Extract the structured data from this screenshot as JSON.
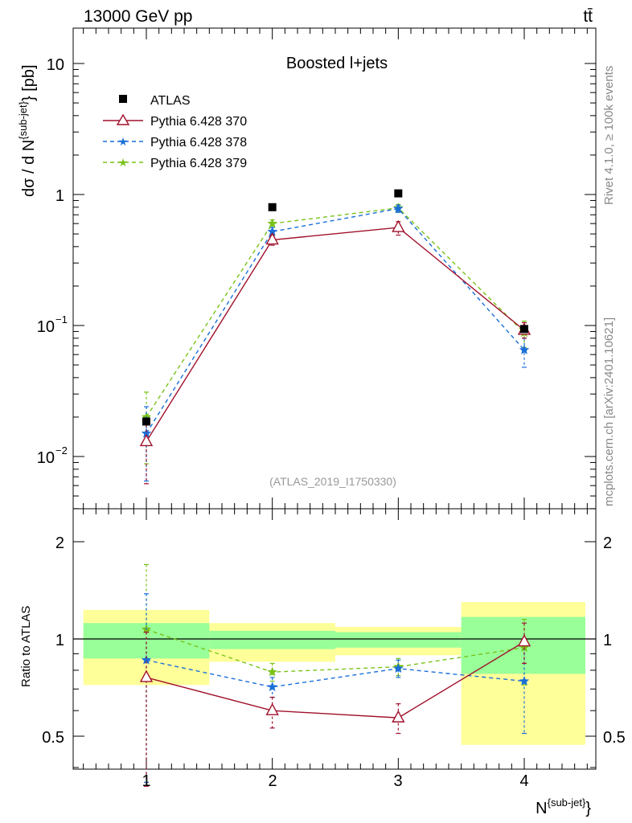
{
  "header": {
    "energy": "13000 GeV pp",
    "process": "tt̄"
  },
  "side": {
    "rivet": "Rivet 4.1.0, ≥ 100k events",
    "mcplots": "mcplots.cern.ch [arXiv:2401.10621]"
  },
  "chart_data": {
    "type": "scatter",
    "title": "Boosted l+jets",
    "analysis": "(ATLAS_2019_I1750330)",
    "xlabel": "N",
    "xlabel_sup": "{sub-jet}",
    "xlabel_end": "}",
    "ylabel": "dσ / d N",
    "ylabel_sup": "{sub-jet}",
    "ylabel_end": "} [pb]",
    "ratio_ylabel": "Ratio to ATLAS",
    "x": [
      1,
      2,
      3,
      4
    ],
    "xlim": [
      0.45,
      4.55
    ],
    "ylim": [
      0.004,
      20
    ],
    "yscale": "log",
    "ratio_ylim": [
      0.34,
      2.35
    ],
    "x_ticks": [
      "1",
      "2",
      "3",
      "4"
    ],
    "main_y_ticks": [
      "10",
      "1",
      "10",
      "10"
    ],
    "main_y_ticks_exp": [
      "",
      "",
      "−1",
      "−2"
    ],
    "ratio_y_ticks": [
      "2",
      "1",
      "0.5"
    ],
    "legend": [
      "ATLAS",
      "Pythia 6.428 370",
      "Pythia 6.428 378",
      "Pythia 6.428 379"
    ],
    "data_series": {
      "name": "ATLAS",
      "values": [
        0.0185,
        0.8,
        1.02,
        0.094
      ],
      "color": "#000000",
      "band_green": [
        [
          0.87,
          1.12
        ],
        [
          0.93,
          1.06
        ],
        [
          0.94,
          1.05
        ],
        [
          0.78,
          1.17
        ]
      ],
      "band_yellow": [
        [
          0.72,
          1.23
        ],
        [
          0.85,
          1.12
        ],
        [
          0.89,
          1.09
        ],
        [
          0.47,
          1.3
        ]
      ]
    },
    "series": [
      {
        "name": "Pythia 6.428 370",
        "values": [
          0.013,
          0.45,
          0.56,
          0.092
        ],
        "err_low": [
          0.0062,
          0.41,
          0.49,
          0.08
        ],
        "err_high": [
          0.019,
          0.49,
          0.62,
          0.105
        ],
        "ratio": [
          0.76,
          0.6,
          0.57,
          0.98
        ],
        "ratio_err_low": [
          0.35,
          0.53,
          0.51,
          0.84
        ],
        "ratio_err_high": [
          1.05,
          0.66,
          0.63,
          1.12
        ],
        "color": "#a0112b",
        "dash": "none",
        "marker": "triangle"
      },
      {
        "name": "Pythia 6.428 378",
        "values": [
          0.015,
          0.52,
          0.78,
          0.065
        ],
        "err_low": [
          0.0065,
          0.48,
          0.73,
          0.048
        ],
        "err_high": [
          0.024,
          0.56,
          0.83,
          0.08
        ],
        "ratio": [
          0.86,
          0.71,
          0.81,
          0.74
        ],
        "ratio_err_low": [
          0.36,
          0.66,
          0.76,
          0.51
        ],
        "ratio_err_high": [
          1.38,
          0.76,
          0.86,
          0.97
        ],
        "color": "#1a6fd8",
        "dash": "5,4",
        "marker": "star"
      },
      {
        "name": "Pythia 6.428 379",
        "values": [
          0.02,
          0.6,
          0.79,
          0.088
        ],
        "err_low": [
          0.0088,
          0.56,
          0.74,
          0.068
        ],
        "err_high": [
          0.031,
          0.64,
          0.84,
          0.108
        ],
        "ratio": [
          1.07,
          0.79,
          0.82,
          0.94
        ],
        "ratio_err_low": [
          0.36,
          0.74,
          0.77,
          0.72
        ],
        "ratio_err_high": [
          1.7,
          0.84,
          0.87,
          1.15
        ],
        "color": "#7ac21a",
        "dash": "5,4",
        "marker": "star"
      }
    ]
  }
}
